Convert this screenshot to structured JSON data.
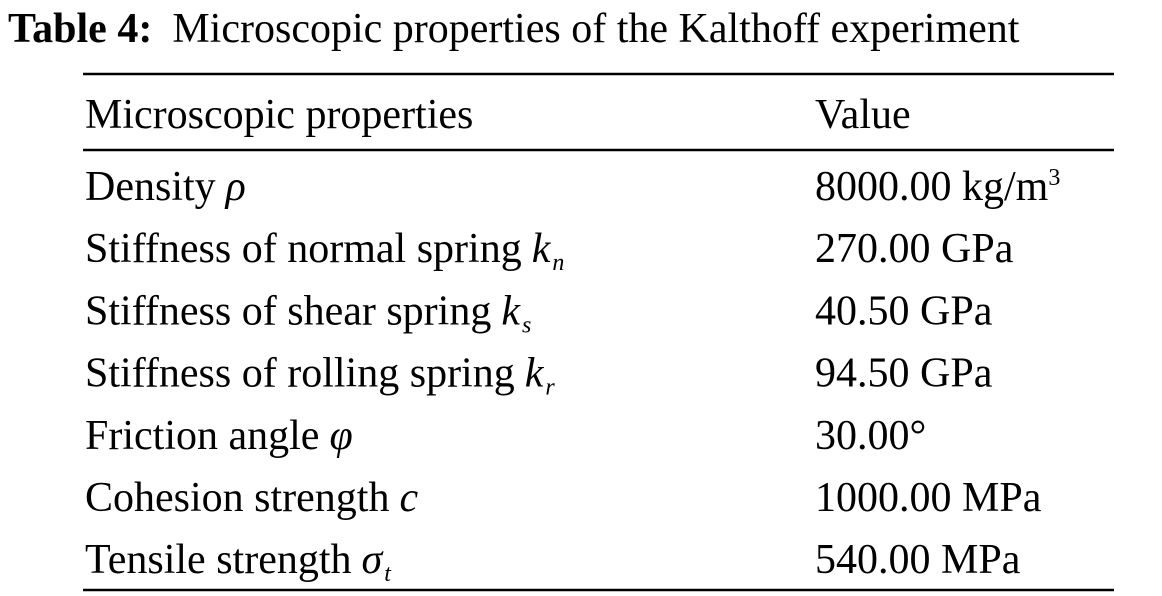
{
  "title": {
    "label": "Table 4:",
    "text": "Microscopic properties of the Kalthoff experiment"
  },
  "table": {
    "header": [
      "Microscopic properties",
      "Value"
    ],
    "rows": [
      {
        "property": "Density",
        "symbol": "ρ",
        "value": "8000.00 kg/m",
        "value_sup": "3"
      },
      {
        "property": "Stiffness of normal spring",
        "symbol": "k",
        "subscript": "n",
        "value": "270.00 GPa"
      },
      {
        "property": "Stiffness of shear spring",
        "symbol": "k",
        "subscript": "s",
        "value": "40.50 GPa"
      },
      {
        "property": "Stiffness of rolling spring",
        "symbol": "k",
        "subscript": "r",
        "value": "94.50 GPa"
      },
      {
        "property": "Friction angle",
        "symbol": "φ",
        "value": "30.00°"
      },
      {
        "property": "Cohesion strength",
        "symbol": "c",
        "value": "1000.00 MPa"
      },
      {
        "property": "Tensile strength",
        "symbol": "σ",
        "subscript": "t",
        "value": "540.00 MPa"
      }
    ]
  }
}
